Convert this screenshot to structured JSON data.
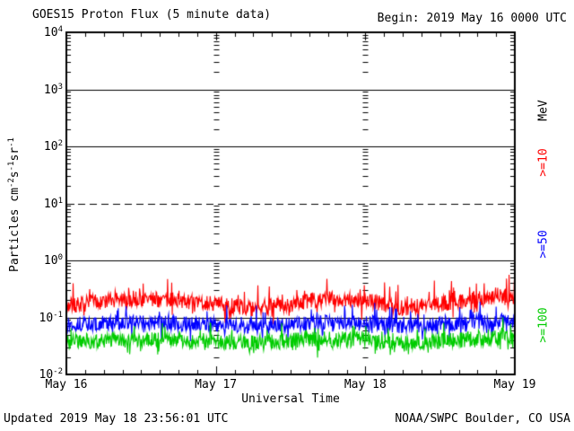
{
  "header": {
    "title": "GOES15 Proton Flux (5 minute data)",
    "begin": "Begin: 2019 May 16 0000 UTC"
  },
  "footer": {
    "updated": "Updated 2019 May 18 23:56:01 UTC",
    "source": "NOAA/SWPC Boulder, CO USA"
  },
  "axes": {
    "x_title": "Universal Time",
    "y_title_parts": {
      "p1": "Particles  cm",
      "e1": "-2",
      "p2": "s",
      "e2": "-1",
      "p3": "sr",
      "e3": "-1"
    }
  },
  "legend": {
    "unit": "MeV",
    "unit_color": "#000000",
    "items": [
      {
        "label": ">=10",
        "color": "#ff0000"
      },
      {
        "label": ">=50",
        "color": "#0000ff"
      },
      {
        "label": ">=100",
        "color": "#00cc00"
      }
    ]
  },
  "chart_data": {
    "type": "line",
    "title": "GOES15 Proton Flux (5 minute data)",
    "xlabel": "Universal Time",
    "ylabel": "Particles cm^-2 s^-1 sr^-1",
    "x_span_hours": 72,
    "x_minor_tick_hours": 3,
    "x_ticks": [
      {
        "label": "May 16",
        "hour": 0
      },
      {
        "label": "May 17",
        "hour": 24
      },
      {
        "label": "May 18",
        "hour": 48
      },
      {
        "label": "May 19",
        "hour": 72
      }
    ],
    "y_scale": "log",
    "ylim": [
      0.01,
      10000
    ],
    "y_log_min": -2,
    "y_log_max": 4,
    "y_tick_base": "10",
    "y_tick_exponents": [
      "4",
      "3",
      "2",
      "1",
      "0",
      "-1",
      "-2"
    ],
    "solid_grid_exponents": [
      3,
      2,
      0,
      -1
    ],
    "dashed_grid_exponents": [
      1
    ],
    "internal_day_gridlines_hours": [
      24,
      48
    ],
    "points_per_day": 288,
    "series": [
      {
        "name": ">=10 MeV",
        "color": "#ff0000",
        "seed": 7,
        "baseline_log": [
          -0.8,
          -0.72,
          -0.68,
          -0.7,
          -0.76,
          -0.84,
          -0.78,
          -0.66,
          -0.7,
          -0.84,
          -0.76,
          -0.68,
          -0.63
        ],
        "noise_log": 0.14,
        "spike_log": 0.34,
        "spike_prob": 0.08,
        "approx_mean_flux": 0.18,
        "approx_range_flux": [
          0.09,
          0.5
        ]
      },
      {
        "name": ">=50 MeV",
        "color": "#0000ff",
        "seed": 13,
        "baseline_log": [
          -1.13,
          -1.1,
          -1.08,
          -1.1,
          -1.13,
          -1.16,
          -1.12,
          -1.08,
          -1.08,
          -1.16,
          -1.12,
          -1.08,
          -1.05
        ],
        "noise_log": 0.13,
        "spike_log": 0.34,
        "spike_prob": 0.07,
        "approx_mean_flux": 0.08,
        "approx_range_flux": [
          0.04,
          0.23
        ]
      },
      {
        "name": ">=100 MeV",
        "color": "#00cc00",
        "seed": 21,
        "baseline_log": [
          -1.42,
          -1.4,
          -1.38,
          -1.4,
          -1.42,
          -1.45,
          -1.41,
          -1.38,
          -1.38,
          -1.45,
          -1.42,
          -1.38,
          -1.36
        ],
        "noise_log": 0.14,
        "spike_log": 0.28,
        "spike_prob": 0.07,
        "approx_mean_flux": 0.04,
        "approx_range_flux": [
          0.02,
          0.09
        ]
      }
    ]
  }
}
